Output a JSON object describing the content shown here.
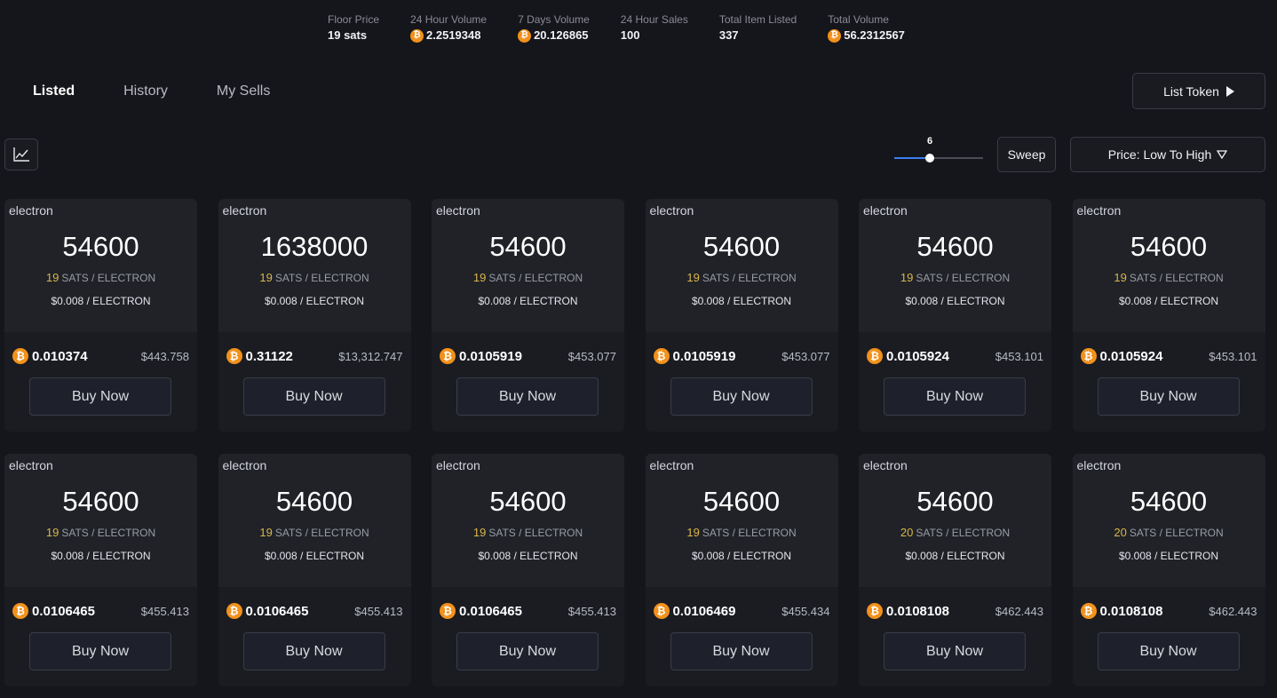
{
  "stats": [
    {
      "label": "Floor Price",
      "value": "19 sats",
      "btc": false
    },
    {
      "label": "24 Hour Volume",
      "value": "2.2519348",
      "btc": true
    },
    {
      "label": "7 Days Volume",
      "value": "20.126865",
      "btc": true
    },
    {
      "label": "24 Hour Sales",
      "value": "100",
      "btc": false
    },
    {
      "label": "Total Item Listed",
      "value": "337",
      "btc": false
    },
    {
      "label": "Total Volume",
      "value": "56.2312567",
      "btc": true
    }
  ],
  "tabs": [
    {
      "label": "Listed",
      "active": true
    },
    {
      "label": "History",
      "active": false
    },
    {
      "label": "My Sells",
      "active": false
    }
  ],
  "toolbar": {
    "list_token_label": "List Token",
    "sweep_label": "Sweep",
    "sort_label": "Price: Low To High",
    "slider_value": "6",
    "slider_fraction": 0.4
  },
  "card_labels": {
    "sats_unit": "SATS / ELECTRON",
    "usd_unit": "/ ELECTRON",
    "buy_label": "Buy Now",
    "btc_symbol": "₿"
  },
  "colors": {
    "background": "#15161b",
    "card": "#1a1c22",
    "accent_gold": "#d9b64a",
    "btc_orange": "#f2911b",
    "slider_blue": "#3b7df0"
  },
  "cards": [
    {
      "name": "electron",
      "amount": "54600",
      "rate": "19",
      "usd_rate": "$0.008",
      "btc_price": "0.010374",
      "usd_price": "$443.758"
    },
    {
      "name": "electron",
      "amount": "1638000",
      "rate": "19",
      "usd_rate": "$0.008",
      "btc_price": "0.31122",
      "usd_price": "$13,312.747"
    },
    {
      "name": "electron",
      "amount": "54600",
      "rate": "19",
      "usd_rate": "$0.008",
      "btc_price": "0.0105919",
      "usd_price": "$453.077"
    },
    {
      "name": "electron",
      "amount": "54600",
      "rate": "19",
      "usd_rate": "$0.008",
      "btc_price": "0.0105919",
      "usd_price": "$453.077"
    },
    {
      "name": "electron",
      "amount": "54600",
      "rate": "19",
      "usd_rate": "$0.008",
      "btc_price": "0.0105924",
      "usd_price": "$453.101"
    },
    {
      "name": "electron",
      "amount": "54600",
      "rate": "19",
      "usd_rate": "$0.008",
      "btc_price": "0.0105924",
      "usd_price": "$453.101"
    },
    {
      "name": "electron",
      "amount": "54600",
      "rate": "19",
      "usd_rate": "$0.008",
      "btc_price": "0.0106465",
      "usd_price": "$455.413"
    },
    {
      "name": "electron",
      "amount": "54600",
      "rate": "19",
      "usd_rate": "$0.008",
      "btc_price": "0.0106465",
      "usd_price": "$455.413"
    },
    {
      "name": "electron",
      "amount": "54600",
      "rate": "19",
      "usd_rate": "$0.008",
      "btc_price": "0.0106465",
      "usd_price": "$455.413"
    },
    {
      "name": "electron",
      "amount": "54600",
      "rate": "19",
      "usd_rate": "$0.008",
      "btc_price": "0.0106469",
      "usd_price": "$455.434"
    },
    {
      "name": "electron",
      "amount": "54600",
      "rate": "20",
      "usd_rate": "$0.008",
      "btc_price": "0.0108108",
      "usd_price": "$462.443"
    },
    {
      "name": "electron",
      "amount": "54600",
      "rate": "20",
      "usd_rate": "$0.008",
      "btc_price": "0.0108108",
      "usd_price": "$462.443"
    }
  ]
}
